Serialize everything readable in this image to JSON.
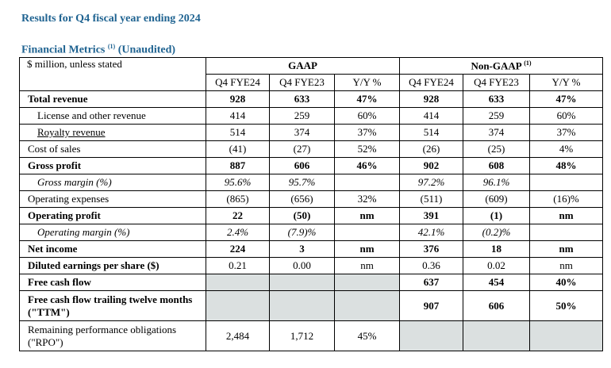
{
  "heading": "Results for Q4 fiscal year ending 2024",
  "subheading": {
    "title": "Financial Metrics",
    "footnote_mark": "(1)",
    "status": "(Unaudited)"
  },
  "table": {
    "corner_label": "$ million, unless stated",
    "groups": {
      "gaap": "GAAP",
      "non_gaap": "Non-GAAP",
      "non_gaap_mark": "(1)"
    },
    "columns": [
      "Q4 FYE24",
      "Q4 FYE23",
      "Y/Y %",
      "Q4 FYE24",
      "Q4 FYE23",
      "Y/Y %"
    ],
    "rows": [
      {
        "label": "Total revenue",
        "values": [
          "928",
          "633",
          "47%",
          "928",
          "633",
          "47%"
        ]
      },
      {
        "label": "License and other revenue",
        "values": [
          "414",
          "259",
          "60%",
          "414",
          "259",
          "60%"
        ]
      },
      {
        "label": "Royalty revenue",
        "values": [
          "514",
          "374",
          "37%",
          "514",
          "374",
          "37%"
        ]
      },
      {
        "label": "Cost of sales",
        "values": [
          "(41)",
          "(27)",
          "52%",
          "(26)",
          "(25)",
          "4%"
        ]
      },
      {
        "label": "Gross profit",
        "values": [
          "887",
          "606",
          "46%",
          "902",
          "608",
          "48%"
        ]
      },
      {
        "label": "Gross margin (%)",
        "values": [
          "95.6%",
          "95.7%",
          "",
          "97.2%",
          "96.1%",
          ""
        ]
      },
      {
        "label": "Operating expenses",
        "values": [
          "(865)",
          "(656)",
          "32%",
          "(511)",
          "(609)",
          "(16)%"
        ]
      },
      {
        "label": "Operating profit",
        "values": [
          "22",
          "(50)",
          "nm",
          "391",
          "(1)",
          "nm"
        ]
      },
      {
        "label": "Operating margin (%)",
        "values": [
          "2.4%",
          "(7.9)%",
          "",
          "42.1%",
          "(0.2)%",
          ""
        ]
      },
      {
        "label": "Net income",
        "values": [
          "224",
          "3",
          "nm",
          "376",
          "18",
          "nm"
        ]
      },
      {
        "label": "Diluted earnings per share ($)",
        "values": [
          "0.21",
          "0.00",
          "nm",
          "0.36",
          "0.02",
          "nm"
        ]
      },
      {
        "label": "Free cash flow",
        "values": [
          "",
          "",
          "",
          "637",
          "454",
          "40%"
        ]
      },
      {
        "label": "Free cash flow trailing twelve months (\"TTM\")",
        "values": [
          "",
          "",
          "",
          "907",
          "606",
          "50%"
        ]
      },
      {
        "label": "Remaining performance obligations (\"RPO\")",
        "values": [
          "2,484",
          "1,712",
          "45%",
          "",
          "",
          ""
        ]
      }
    ]
  },
  "colors": {
    "heading": "#1f6391",
    "shade": "#dbe0e0"
  }
}
